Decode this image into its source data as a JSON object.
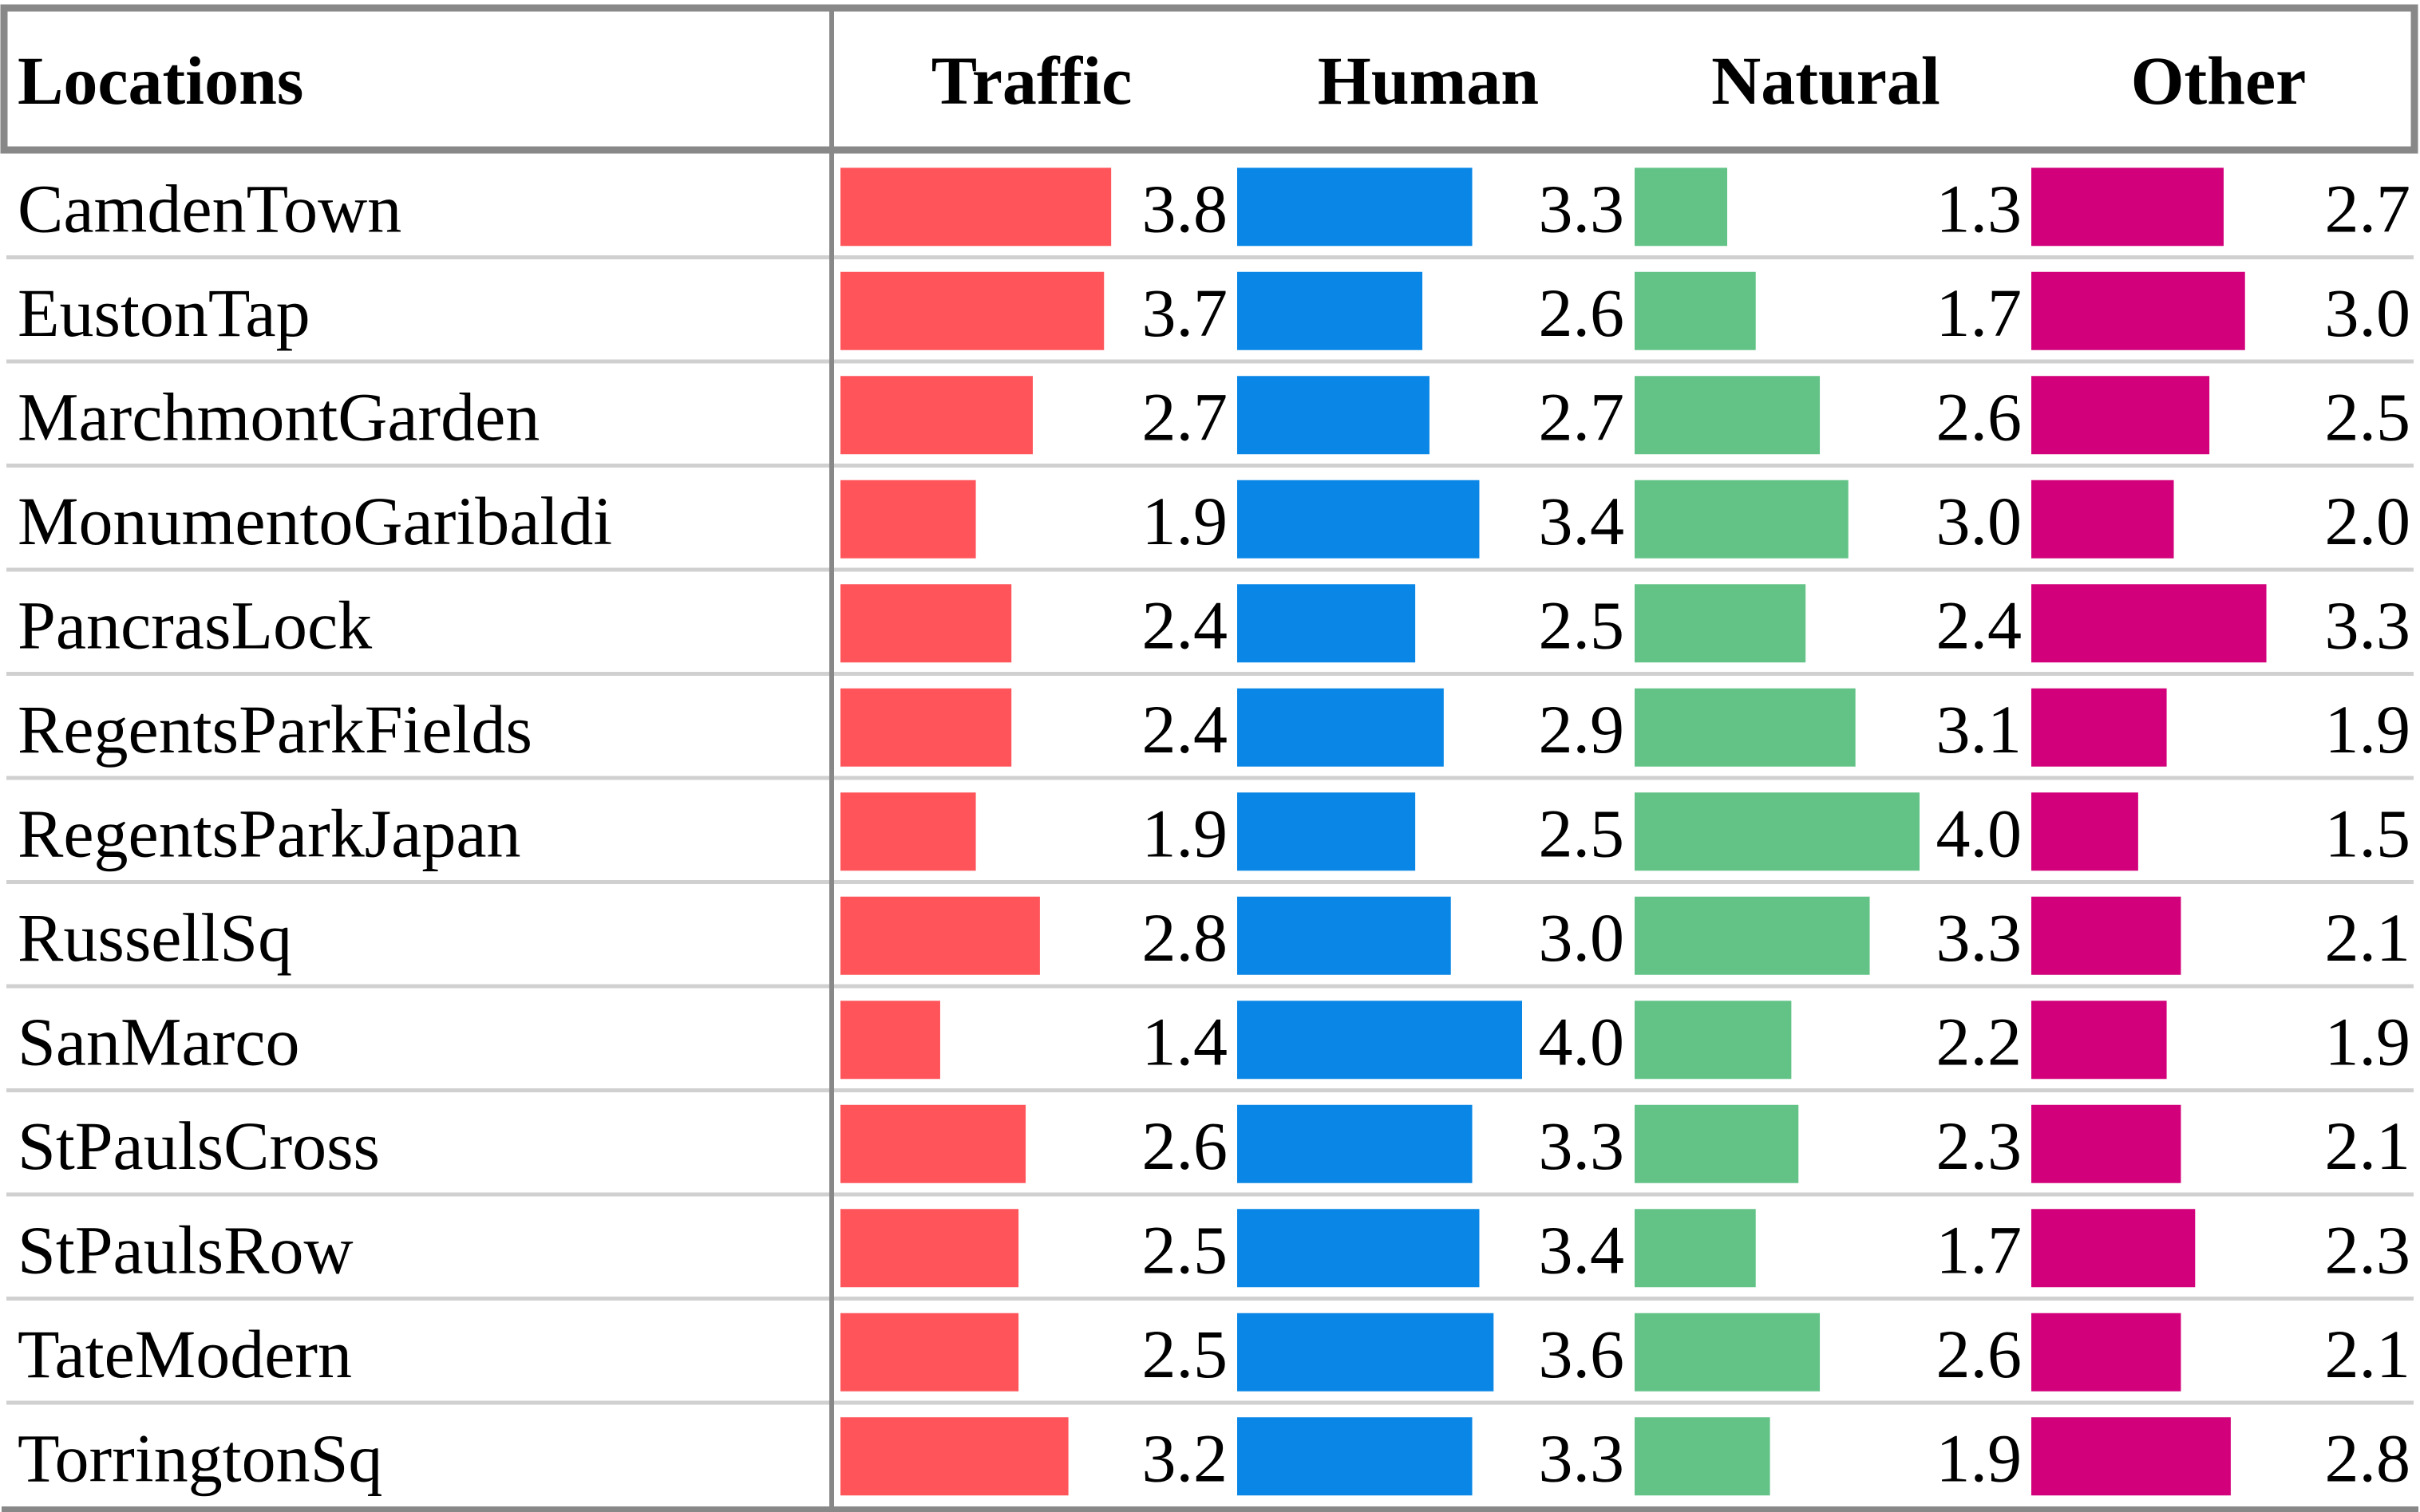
{
  "chart_data": {
    "type": "table",
    "header": {
      "location_label": "Locations",
      "columns": [
        "Traffic",
        "Human",
        "Natural",
        "Other"
      ]
    },
    "colors": {
      "Traffic": "#ff555a",
      "Human": "#0a87e6",
      "Natural": "#63c387",
      "Other": "#d2007a",
      "border": "#888888",
      "row_divider": "#d0d0d0"
    },
    "bar_max": 4.0,
    "rows": [
      {
        "location": "CamdenTown",
        "values": [
          "3.8",
          "3.3",
          "1.3",
          "2.7"
        ]
      },
      {
        "location": "EustonTap",
        "values": [
          "3.7",
          "2.6",
          "1.7",
          "3.0"
        ]
      },
      {
        "location": "MarchmontGarden",
        "values": [
          "2.7",
          "2.7",
          "2.6",
          "2.5"
        ]
      },
      {
        "location": "MonumentoGaribaldi",
        "values": [
          "1.9",
          "3.4",
          "3.0",
          "2.0"
        ]
      },
      {
        "location": "PancrasLock",
        "values": [
          "2.4",
          "2.5",
          "2.4",
          "3.3"
        ]
      },
      {
        "location": "RegentsParkFields",
        "values": [
          "2.4",
          "2.9",
          "3.1",
          "1.9"
        ]
      },
      {
        "location": "RegentsParkJapan",
        "values": [
          "1.9",
          "2.5",
          "4.0",
          "1.5"
        ]
      },
      {
        "location": "RussellSq",
        "values": [
          "2.8",
          "3.0",
          "3.3",
          "2.1"
        ]
      },
      {
        "location": "SanMarco",
        "values": [
          "1.4",
          "4.0",
          "2.2",
          "1.9"
        ]
      },
      {
        "location": "StPaulsCross",
        "values": [
          "2.6",
          "3.3",
          "2.3",
          "2.1"
        ]
      },
      {
        "location": "StPaulsRow",
        "values": [
          "2.5",
          "3.4",
          "1.7",
          "2.3"
        ]
      },
      {
        "location": "TateModern",
        "values": [
          "2.5",
          "3.6",
          "2.6",
          "2.1"
        ]
      },
      {
        "location": "TorringtonSq",
        "values": [
          "3.2",
          "3.3",
          "1.9",
          "2.8"
        ]
      }
    ]
  }
}
